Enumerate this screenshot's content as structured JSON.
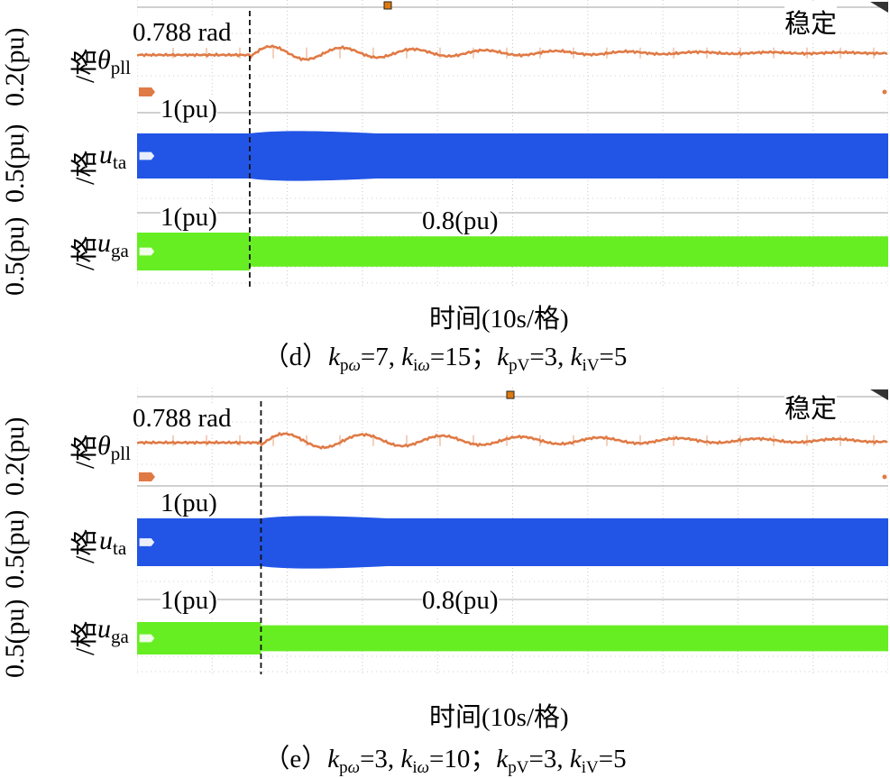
{
  "panels": [
    {
      "channels": [
        {
          "scale": "0.2(pu)",
          "unit": "/格",
          "symbol": "θ",
          "sub": "pll",
          "annotation": "0.788 rad",
          "color": "#e07a45",
          "corner_note": "稳定"
        },
        {
          "scale": "0.5(pu)",
          "unit": "/格",
          "symbol": "u",
          "sub": "ta",
          "annotation": "1(pu)",
          "color": "#2255e6"
        },
        {
          "scale": "0.5(pu)",
          "unit": "/格",
          "symbol": "u",
          "sub": "ga",
          "annotation": "1(pu)",
          "annotation2": "0.8(pu)",
          "color": "#66ee22"
        }
      ],
      "x_label": "时间(10s/格)",
      "caption": {
        "tag": "（d）",
        "kpw": "=7,",
        "kiw": "=15；",
        "kpv": "=3,",
        "kiv": "=5"
      }
    },
    {
      "channels": [
        {
          "scale": "0.2(pu)",
          "unit": "/格",
          "symbol": "θ",
          "sub": "pll",
          "annotation": "0.788 rad",
          "color": "#e07a45",
          "corner_note": "稳定"
        },
        {
          "scale": "0.5(pu)",
          "unit": "/格",
          "symbol": "u",
          "sub": "ta",
          "annotation": "1(pu)",
          "color": "#2255e6"
        },
        {
          "scale": "0.5(pu)",
          "unit": "/格",
          "symbol": "u",
          "sub": "ga",
          "annotation": "1(pu)",
          "annotation2": "0.8(pu)",
          "color": "#66ee22"
        }
      ],
      "x_label": "时间(10s/格)",
      "caption": {
        "tag": "（e）",
        "kpw": "=3,",
        "kiw": "=10；",
        "kpv": "=3,",
        "kiv": "=5"
      }
    }
  ],
  "chart_data": [
    {
      "type": "line",
      "x_division": "10s",
      "divisions": 10,
      "event_division": 1.5,
      "series": [
        {
          "name": "θpll",
          "before": 0.788,
          "after": 0.95,
          "oscillation_periods_div": 0.95,
          "decay": 0.35,
          "unit": "rad"
        },
        {
          "name": "uta",
          "before": 1.0,
          "after": 1.0,
          "unit": "pu"
        },
        {
          "name": "uga",
          "before": 1.0,
          "after": 0.8,
          "unit": "pu"
        }
      ]
    },
    {
      "type": "line",
      "x_division": "10s",
      "divisions": 10,
      "event_division": 1.65,
      "series": [
        {
          "name": "θpll",
          "before": 0.788,
          "after": 0.95,
          "oscillation_periods_div": 1.05,
          "decay": 0.22,
          "unit": "rad"
        },
        {
          "name": "uta",
          "before": 1.0,
          "after": 1.0,
          "unit": "pu"
        },
        {
          "name": "uga",
          "before": 1.0,
          "after": 0.8,
          "unit": "pu"
        }
      ]
    }
  ]
}
